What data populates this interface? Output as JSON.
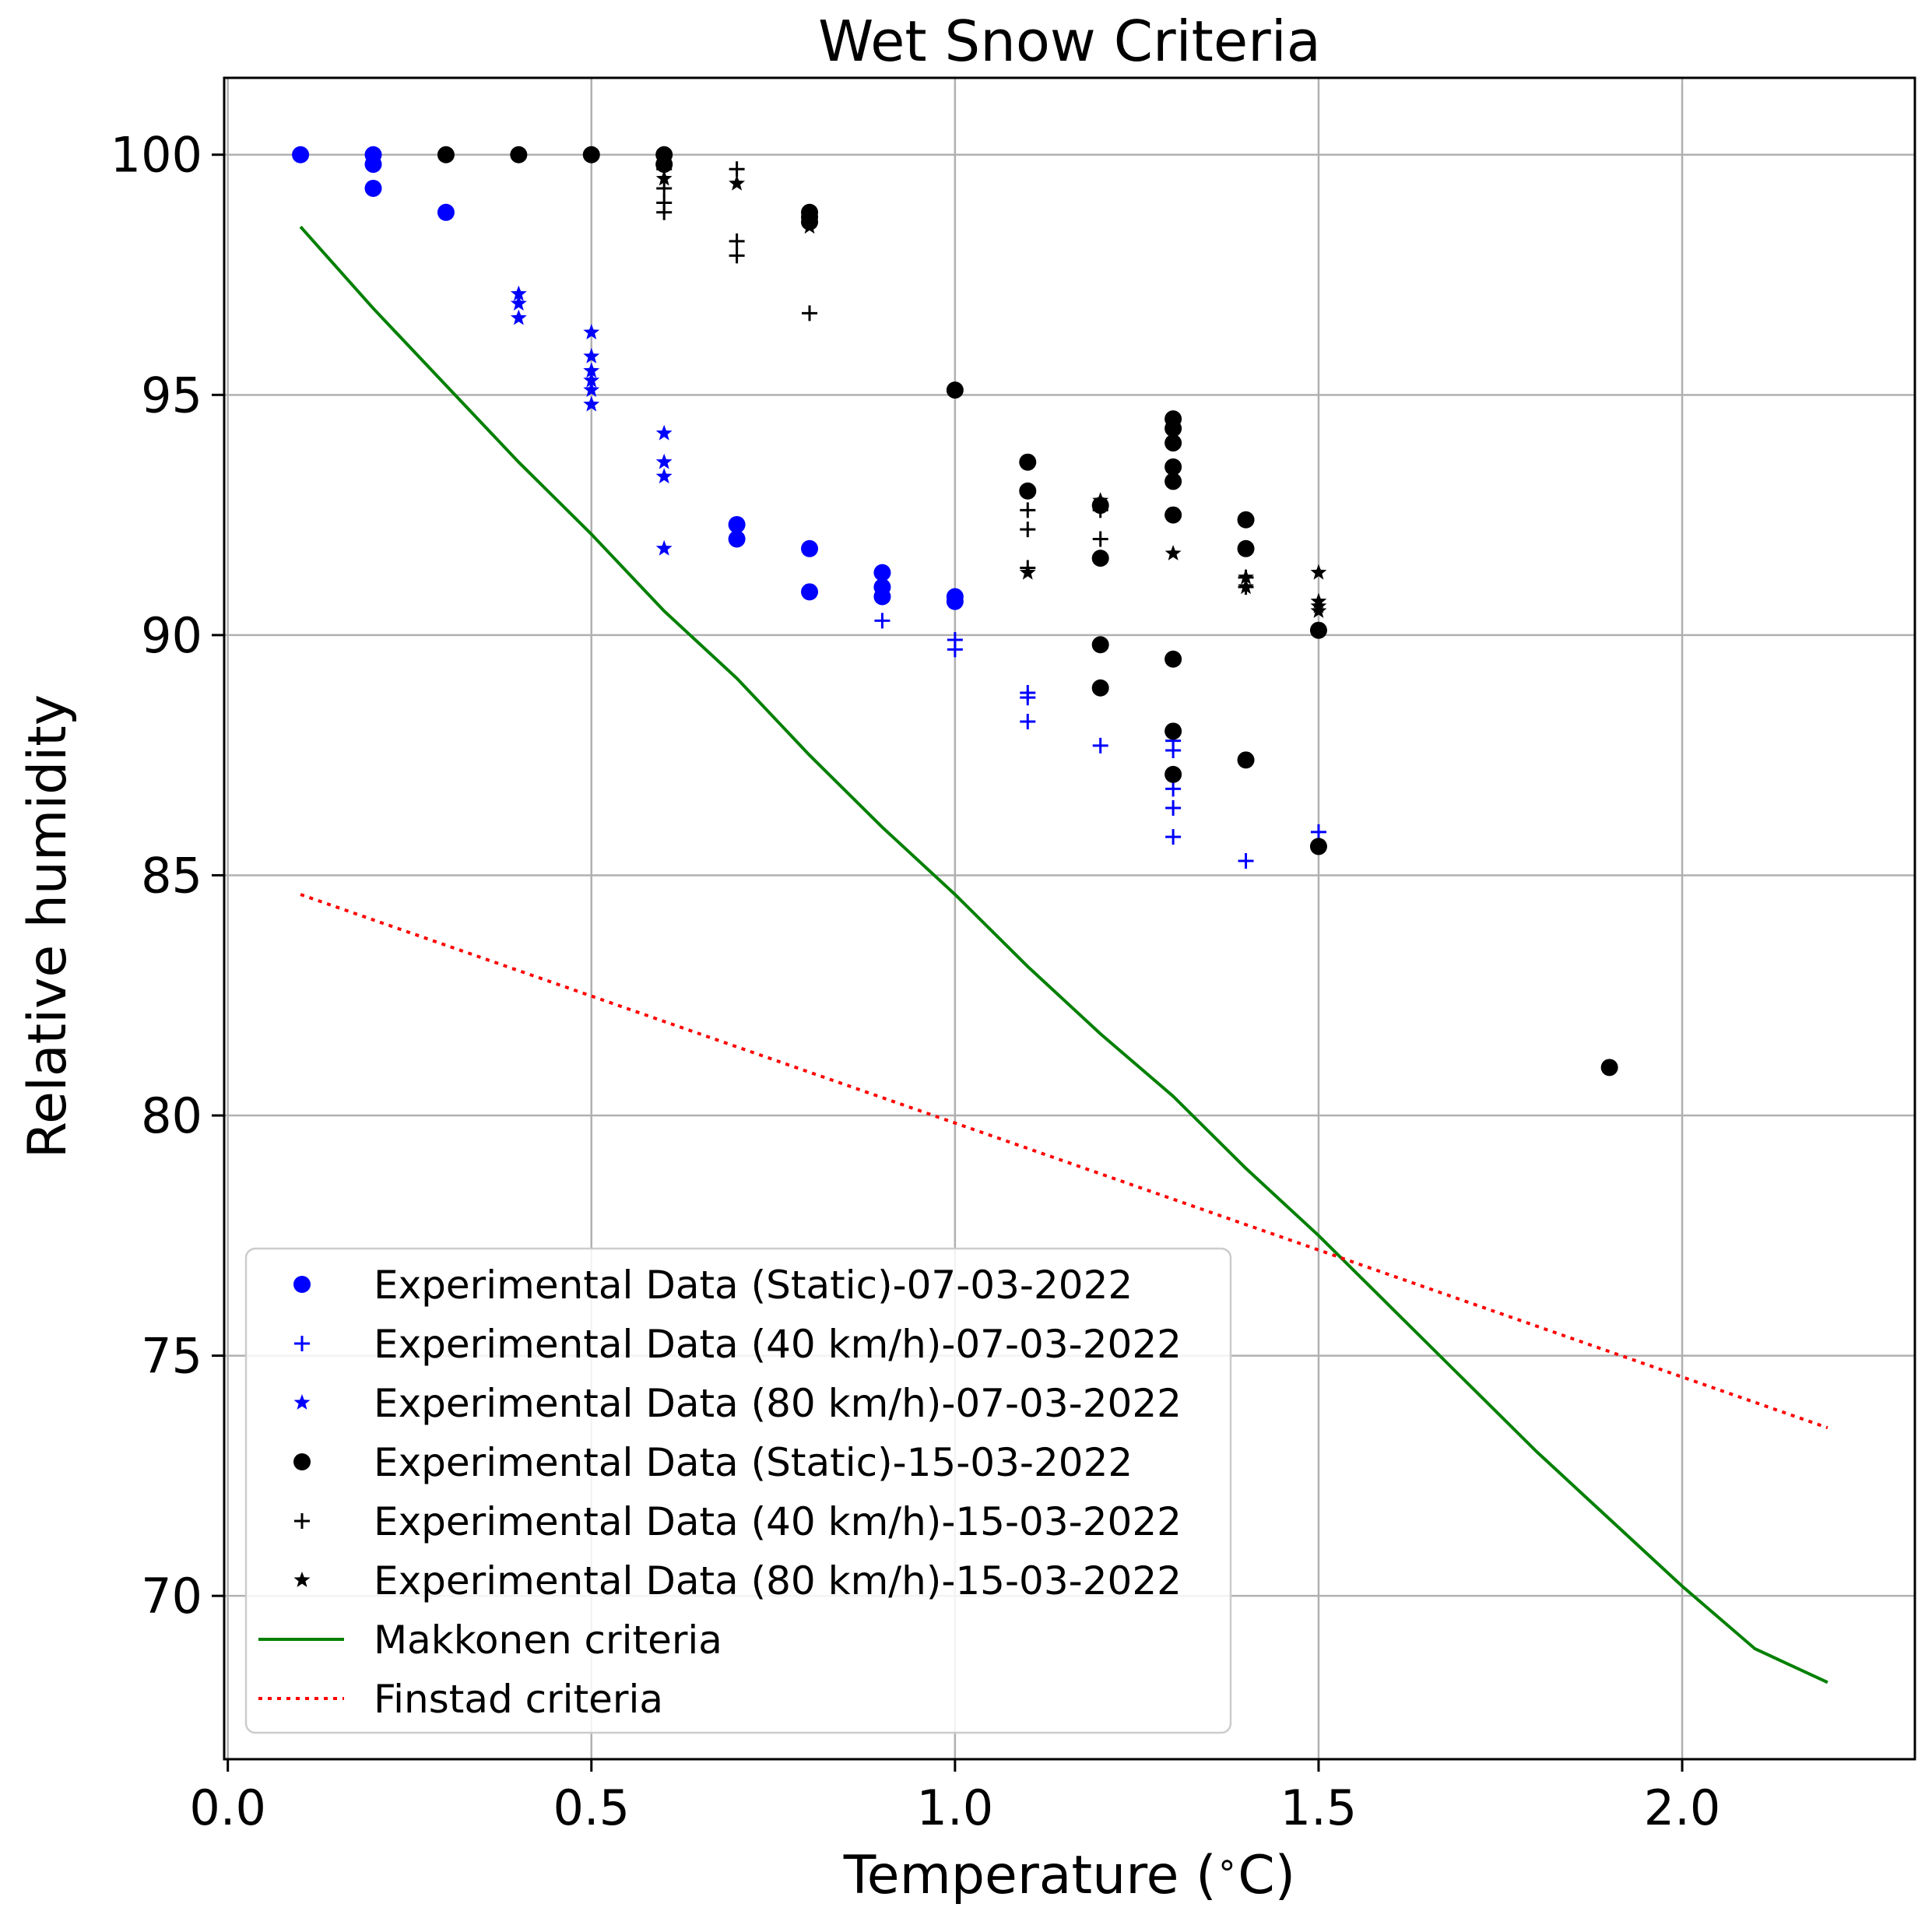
{
  "chart_data": {
    "type": "scatter",
    "title": "Wet Snow Criteria",
    "xlabel_prefix": "Temperature (",
    "xlabel_degree": "∘",
    "xlabel_unit": "C)",
    "ylabel": "Relative humidity",
    "xlim": [
      -0.005,
      2.32
    ],
    "ylim": [
      66.6,
      101.6
    ],
    "x_ticks": [
      0.0,
      0.5,
      1.0,
      1.5,
      2.0
    ],
    "x_tick_labels": [
      "0.0",
      "0.5",
      "1.0",
      "1.5",
      "2.0"
    ],
    "y_ticks": [
      70,
      75,
      80,
      85,
      90,
      95,
      100
    ],
    "y_tick_labels": [
      "70",
      "75",
      "80",
      "85",
      "90",
      "95",
      "100"
    ],
    "grid": true,
    "legend_position": "lower-left",
    "series": [
      {
        "name": "Experimental Data (Static)-07-03-2022",
        "marker": "circle",
        "color": "#0000ff",
        "x": [
          0.1,
          0.2,
          0.2,
          0.2,
          0.3,
          0.7,
          0.7,
          0.8,
          0.8,
          0.9,
          0.9,
          0.9,
          1.0,
          1.0
        ],
        "y": [
          100.0,
          100.0,
          99.8,
          99.3,
          98.8,
          92.3,
          92.0,
          91.8,
          90.9,
          91.3,
          91.0,
          90.8,
          90.8,
          90.7
        ]
      },
      {
        "name": "Experimental Data (40 km/h)-07-03-2022",
        "marker": "plus",
        "color": "#0000ff",
        "x": [
          0.9,
          1.0,
          1.0,
          1.1,
          1.1,
          1.1,
          1.2,
          1.3,
          1.3,
          1.3,
          1.3,
          1.3,
          1.4,
          1.5
        ],
        "y": [
          90.3,
          89.9,
          89.7,
          88.8,
          88.7,
          88.2,
          87.7,
          87.8,
          87.6,
          86.8,
          86.4,
          85.8,
          85.3,
          85.9
        ]
      },
      {
        "name": "Experimental Data (80 km/h)-07-03-2022",
        "marker": "star",
        "color": "#0000ff",
        "x": [
          0.4,
          0.4,
          0.4,
          0.5,
          0.5,
          0.5,
          0.5,
          0.5,
          0.5,
          0.6,
          0.6,
          0.6,
          0.6
        ],
        "y": [
          97.1,
          96.9,
          96.6,
          96.3,
          95.8,
          95.5,
          95.3,
          95.1,
          94.8,
          94.2,
          93.6,
          93.3,
          91.8
        ]
      },
      {
        "name": "Experimental Data (Static)-15-03-2022",
        "marker": "circle",
        "color": "#000000",
        "x": [
          0.3,
          0.4,
          0.5,
          0.6,
          0.6,
          0.8,
          0.8,
          0.8,
          1.0,
          1.1,
          1.1,
          1.2,
          1.2,
          1.2,
          1.2,
          1.3,
          1.3,
          1.3,
          1.3,
          1.3,
          1.3,
          1.3,
          1.3,
          1.3,
          1.4,
          1.4,
          1.4,
          1.5,
          1.5,
          1.9
        ],
        "y": [
          100.0,
          100.0,
          100.0,
          100.0,
          99.8,
          98.8,
          98.7,
          98.6,
          95.1,
          93.6,
          93.0,
          92.7,
          91.6,
          89.8,
          88.9,
          94.5,
          94.3,
          94.0,
          93.5,
          93.2,
          92.5,
          89.5,
          88.0,
          87.1,
          92.4,
          91.8,
          87.4,
          90.1,
          85.6,
          81.0
        ]
      },
      {
        "name": "Experimental Data (40 km/h)-15-03-2022",
        "marker": "plus",
        "color": "#000000",
        "x": [
          0.6,
          0.6,
          0.6,
          0.6,
          0.7,
          0.7,
          0.7,
          0.8,
          1.1,
          1.1,
          1.1,
          1.2,
          1.2,
          1.2,
          1.4,
          1.4
        ],
        "y": [
          99.7,
          99.3,
          99.0,
          98.8,
          99.7,
          98.2,
          97.9,
          96.7,
          92.6,
          92.2,
          91.4,
          92.6,
          92.0,
          91.6,
          91.2,
          91.0
        ]
      },
      {
        "name": "Experimental Data (80 km/h)-15-03-2022",
        "marker": "star",
        "color": "#000000",
        "x": [
          0.6,
          0.7,
          0.8,
          0.8,
          1.1,
          1.2,
          1.3,
          1.4,
          1.4,
          1.5,
          1.5,
          1.5,
          1.5
        ],
        "y": [
          99.5,
          99.4,
          98.8,
          98.5,
          91.3,
          92.8,
          91.7,
          91.2,
          91.0,
          91.3,
          90.7,
          90.6,
          90.5
        ]
      },
      {
        "name": "Makkonen criteria",
        "marker": "line",
        "color": "#008000",
        "x": [
          0.1,
          0.2,
          0.3,
          0.4,
          0.5,
          0.6,
          0.7,
          0.8,
          0.9,
          1.0,
          1.1,
          1.2,
          1.3,
          1.4,
          1.5,
          1.6,
          1.7,
          1.8,
          1.9,
          2.0,
          2.1,
          2.2
        ],
        "y": [
          98.5,
          96.8,
          95.2,
          93.6,
          92.1,
          90.5,
          89.1,
          87.5,
          86.0,
          84.6,
          83.1,
          81.7,
          80.4,
          78.9,
          77.5,
          76.0,
          74.5,
          73.0,
          71.6,
          70.2,
          68.9,
          68.2
        ]
      },
      {
        "name": "Finstad criteria",
        "marker": "dotted",
        "color": "#ff0000",
        "x": [
          0.1,
          2.2
        ],
        "y": [
          84.6,
          73.5
        ]
      }
    ]
  }
}
